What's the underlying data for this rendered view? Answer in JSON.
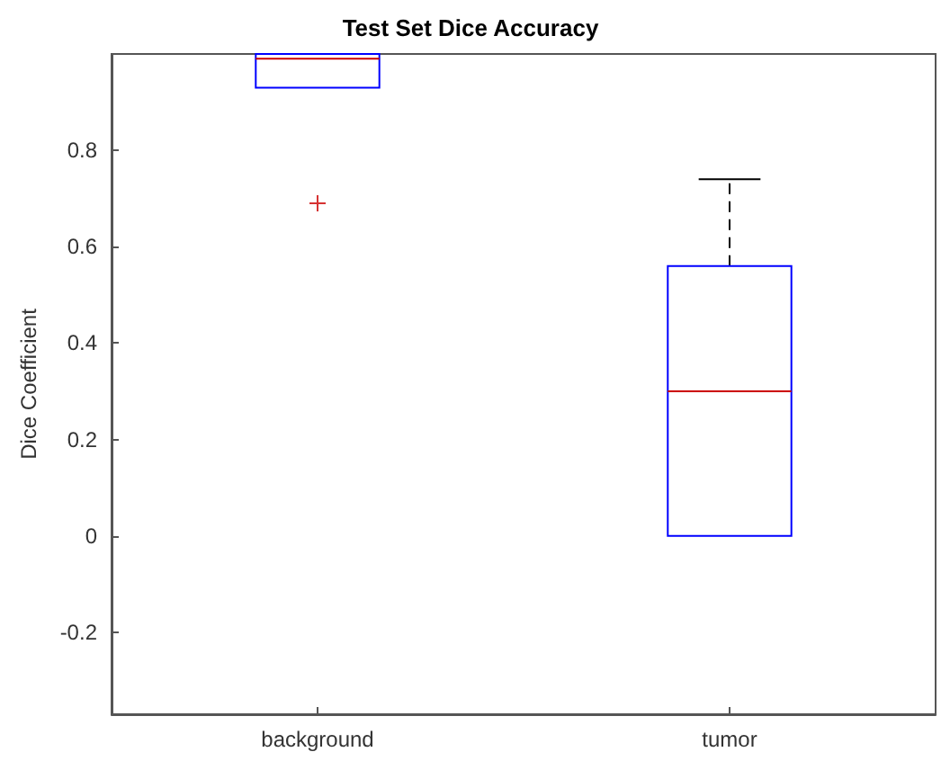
{
  "chart_data": {
    "type": "box",
    "title": "Test Set Dice Accuracy",
    "ylabel": "Dice Coefficient",
    "categories": [
      "background",
      "tumor"
    ],
    "series": [
      {
        "color": "#0000ff",
        "boxes": [
          {
            "low": 0.93,
            "q1": 0.93,
            "median": 0.99,
            "q3": 1.0,
            "high": 1.0,
            "outliers": [
              0.69
            ]
          },
          {
            "low": 0,
            "q1": 0,
            "median": 0.3,
            "q3": 0.56,
            "high": 0.74
          }
        ]
      }
    ],
    "ylim": [
      -0.37,
      1.0
    ],
    "yticks": [
      -0.2,
      0,
      0.2,
      0.4,
      0.6,
      0.8
    ]
  }
}
